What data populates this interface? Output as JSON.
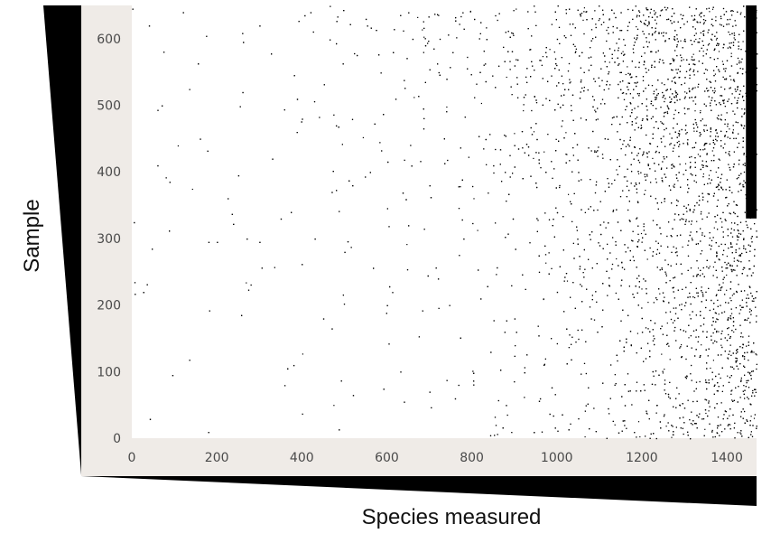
{
  "chart_data": {
    "type": "scatter",
    "title": "",
    "xlabel": "Species measured",
    "ylabel": "Sample",
    "xlim": [
      0,
      1470
    ],
    "ylim": [
      0,
      650
    ],
    "x_ticks": [
      0,
      200,
      400,
      600,
      800,
      1000,
      1200,
      1400
    ],
    "y_ticks": [
      0,
      100,
      200,
      300,
      400,
      500,
      600
    ],
    "grid": false,
    "legend": "none",
    "description_of_points": "binary presence matrix: dense near high species indices and high sample indices, sparse elsewhere",
    "series": [
      {
        "values": [
          [
            95,
            95
          ],
          [
            380,
            110
          ],
          [
            520,
            65
          ],
          [
            640,
            55
          ],
          [
            700,
            70
          ],
          [
            760,
            60
          ],
          [
            880,
            50
          ],
          [
            960,
            60
          ],
          [
            1050,
            30
          ],
          [
            1120,
            45
          ],
          [
            450,
            180
          ],
          [
            470,
            165
          ],
          [
            600,
            200
          ],
          [
            720,
            240
          ],
          [
            820,
            210
          ],
          [
            900,
            180
          ],
          [
            1000,
            220
          ],
          [
            1080,
            180
          ],
          [
            1150,
            230
          ],
          [
            1200,
            160
          ],
          [
            180,
            295
          ],
          [
            200,
            295
          ],
          [
            270,
            300
          ],
          [
            300,
            295
          ],
          [
            350,
            330
          ],
          [
            430,
            300
          ],
          [
            500,
            280
          ],
          [
            650,
            320
          ],
          [
            780,
            300
          ],
          [
            1100,
            290
          ],
          [
            60,
            410
          ],
          [
            250,
            395
          ],
          [
            330,
            420
          ],
          [
            470,
            370
          ],
          [
            560,
            400
          ],
          [
            700,
            380
          ],
          [
            850,
            410
          ],
          [
            950,
            430
          ],
          [
            1050,
            400
          ],
          [
            1180,
            420
          ],
          [
            70,
            500
          ],
          [
            160,
            450
          ],
          [
            260,
            520
          ],
          [
            400,
            480
          ],
          [
            480,
            470
          ],
          [
            620,
            510
          ],
          [
            740,
            540
          ],
          [
            900,
            560
          ],
          [
            1000,
            600
          ],
          [
            1250,
            610
          ],
          [
            40,
            620
          ],
          [
            120,
            640
          ],
          [
            300,
            620
          ],
          [
            420,
            640
          ],
          [
            550,
            630
          ],
          [
            660,
            600
          ],
          [
            820,
            625
          ],
          [
            1150,
            640
          ],
          [
            1300,
            600
          ],
          [
            1350,
            500
          ],
          [
            1380,
            420
          ],
          [
            1400,
            350
          ],
          [
            1420,
            280
          ],
          [
            1430,
            200
          ],
          [
            1440,
            120
          ],
          [
            1450,
            60
          ],
          [
            1460,
            20
          ],
          [
            1410,
            560
          ],
          [
            1440,
            470
          ],
          [
            1460,
            380
          ]
        ]
      }
    ]
  }
}
